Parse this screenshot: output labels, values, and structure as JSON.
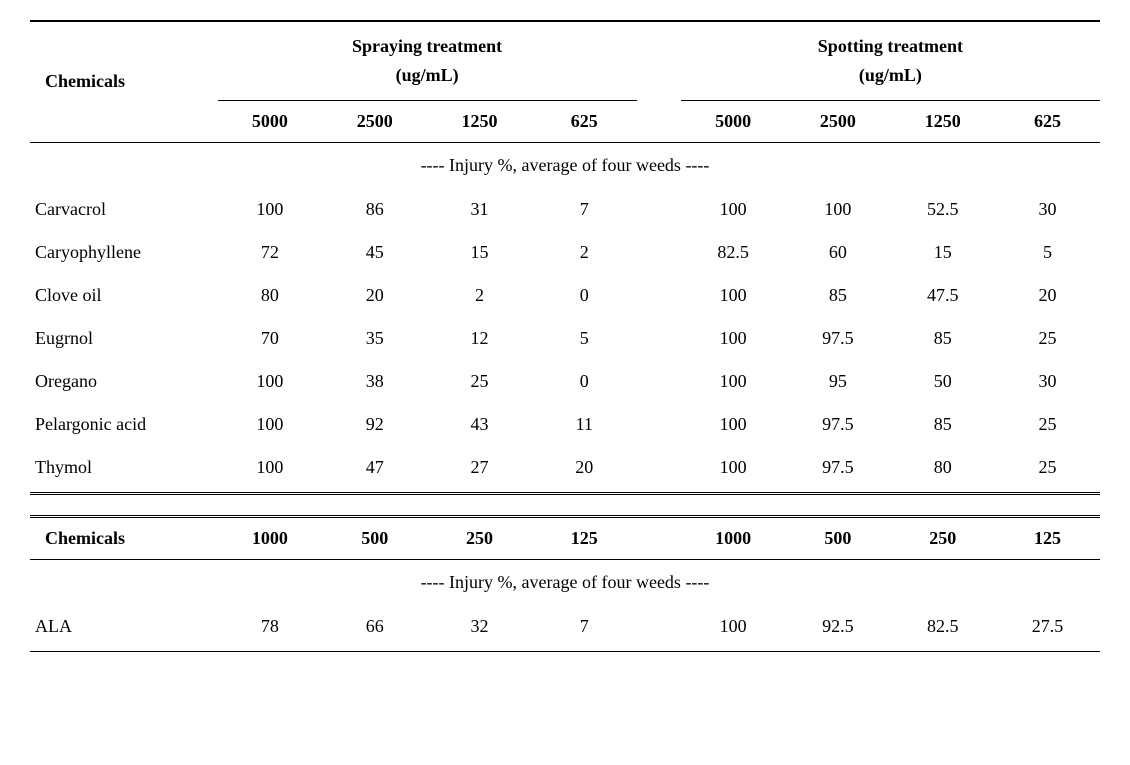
{
  "table": {
    "type": "table",
    "colors": {
      "text": "#000000",
      "background": "#ffffff",
      "border": "#000000"
    },
    "typography": {
      "font_family": "Georgia, serif",
      "base_fontsize": 18,
      "header_weight": "bold"
    },
    "headers": {
      "chemicals_label": "Chemicals",
      "spraying_label_line1": "Spraying treatment",
      "spraying_label_line2": "(ug/mL)",
      "spotting_label_line1": "Spotting treatment",
      "spotting_label_line2": "(ug/mL)",
      "injury_label": "---- Injury %, average of four weeds ----"
    },
    "section1": {
      "concentrations": [
        "5000",
        "2500",
        "1250",
        "625"
      ],
      "rows": [
        {
          "name": "Carvacrol",
          "spraying": [
            "100",
            "86",
            "31",
            "7"
          ],
          "spotting": [
            "100",
            "100",
            "52.5",
            "30"
          ]
        },
        {
          "name": "Caryophyllene",
          "spraying": [
            "72",
            "45",
            "15",
            "2"
          ],
          "spotting": [
            "82.5",
            "60",
            "15",
            "5"
          ]
        },
        {
          "name": "Clove oil",
          "spraying": [
            "80",
            "20",
            "2",
            "0"
          ],
          "spotting": [
            "100",
            "85",
            "47.5",
            "20"
          ]
        },
        {
          "name": "Eugrnol",
          "spraying": [
            "70",
            "35",
            "12",
            "5"
          ],
          "spotting": [
            "100",
            "97.5",
            "85",
            "25"
          ]
        },
        {
          "name": "Oregano",
          "spraying": [
            "100",
            "38",
            "25",
            "0"
          ],
          "spotting": [
            "100",
            "95",
            "50",
            "30"
          ]
        },
        {
          "name": "Pelargonic acid",
          "spraying": [
            "100",
            "92",
            "43",
            "11"
          ],
          "spotting": [
            "100",
            "97.5",
            "85",
            "25"
          ]
        },
        {
          "name": "Thymol",
          "spraying": [
            "100",
            "47",
            "27",
            "20"
          ],
          "spotting": [
            "100",
            "97.5",
            "80",
            "25"
          ]
        }
      ]
    },
    "section2": {
      "concentrations": [
        "1000",
        "500",
        "250",
        "125"
      ],
      "rows": [
        {
          "name": "ALA",
          "spraying": [
            "78",
            "66",
            "32",
            "7"
          ],
          "spotting": [
            "100",
            "92.5",
            "82.5",
            "27.5"
          ]
        }
      ]
    }
  }
}
